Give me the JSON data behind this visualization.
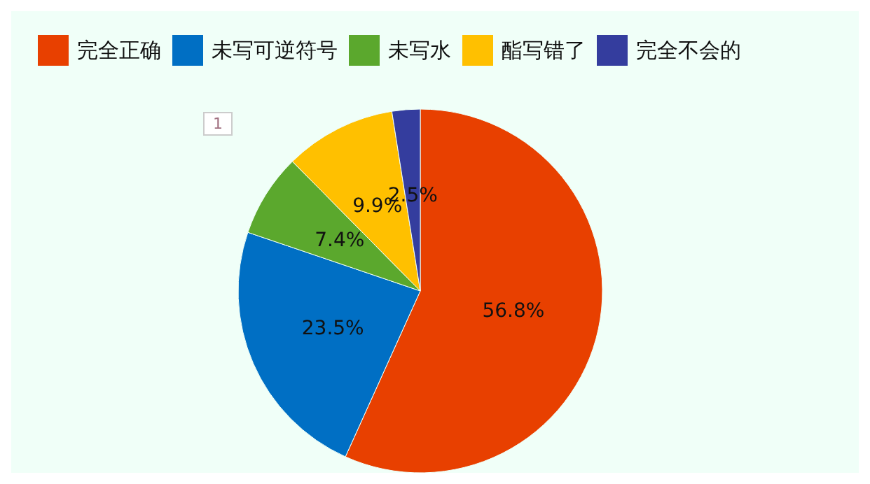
{
  "chart_data": {
    "type": "pie",
    "categories": [
      "完全正确",
      "未写可逆符号",
      "未写水",
      "酯写错了",
      "完全不会的"
    ],
    "values": [
      56.8,
      23.5,
      7.4,
      9.9,
      2.5
    ],
    "colors": [
      "#e84000",
      "#006fc4",
      "#5ba82d",
      "#ffc000",
      "#343d9e"
    ],
    "value_labels": [
      "56.8%",
      "23.5%",
      "7.4%",
      "9.9%",
      "2.5%"
    ],
    "legend": "top left",
    "annotations": [
      "1"
    ]
  }
}
